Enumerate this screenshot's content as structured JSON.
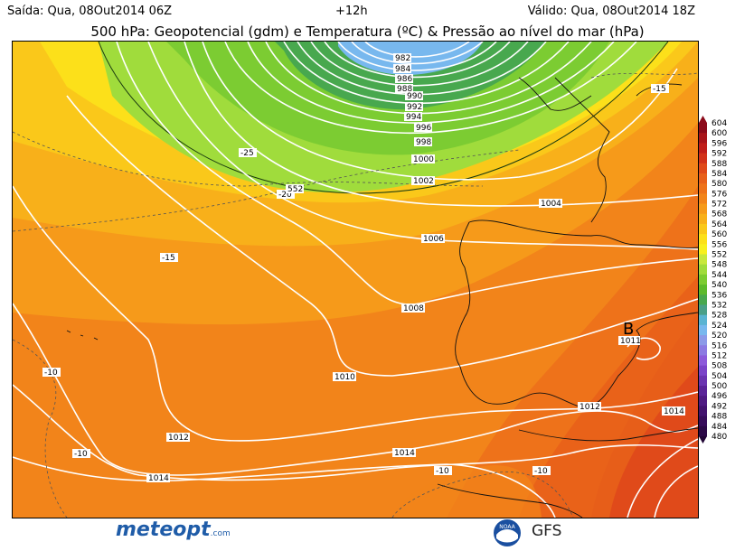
{
  "header": {
    "issued": "Saída: Qua, 08Out2014 06Z",
    "lead": "+12h",
    "valid": "Válido: Qua, 08Out2014 18Z",
    "title": "500 hPa: Geopotencial (gdm) e Temperatura (ºC) & Pressão ao nível do mar (hPa)"
  },
  "legend": {
    "levels": [
      "604",
      "600",
      "596",
      "592",
      "588",
      "584",
      "580",
      "576",
      "572",
      "568",
      "564",
      "560",
      "556",
      "552",
      "548",
      "544",
      "540",
      "536",
      "532",
      "528",
      "524",
      "520",
      "516",
      "512",
      "508",
      "504",
      "500",
      "496",
      "492",
      "488",
      "484",
      "480"
    ],
    "colors": [
      "#8b0a1a",
      "#a8141a",
      "#c01e1a",
      "#d2321a",
      "#e04a1a",
      "#e8601a",
      "#ee721a",
      "#f2841a",
      "#f69a1a",
      "#f8b01a",
      "#fac81a",
      "#fce01a",
      "#f8f01e",
      "#c8e83c",
      "#a0dc3c",
      "#7ccc32",
      "#5cba2c",
      "#48a84e",
      "#4aa088",
      "#5ab4d2",
      "#78b8ee",
      "#8c9ae8",
      "#8c7ae2",
      "#8c5ada",
      "#7a44c8",
      "#6a34b0",
      "#5a2498",
      "#4e1a82",
      "#42126e",
      "#360c5a",
      "#2a0846",
      "#200434"
    ]
  },
  "map": {
    "pressure_labels": [
      "982",
      "984",
      "986",
      "988",
      "990",
      "992",
      "994",
      "996",
      "998",
      "1000",
      "1002",
      "1004",
      "1006",
      "1008",
      "1010",
      "1012",
      "1014",
      "1011"
    ],
    "temperature_labels": [
      "-25",
      "-20",
      "-15",
      "-10",
      "-15"
    ],
    "height_labels": [
      "552"
    ],
    "low_marker": "B"
  },
  "footer": {
    "logo": "meteopt",
    "logo_suffix": ".com",
    "noaa": "NOAA",
    "model": "GFS"
  }
}
